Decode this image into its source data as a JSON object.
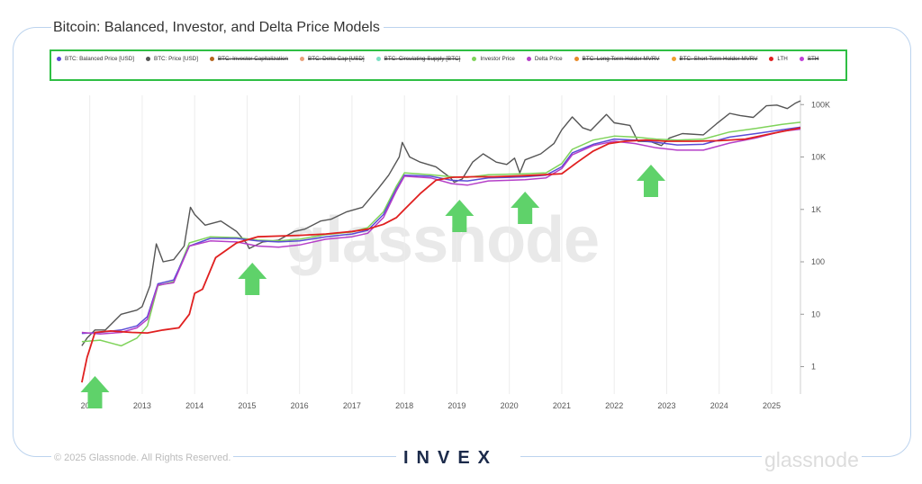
{
  "title": "Bitcoin: Balanced, Investor, and Delta Price Models",
  "legend": [
    {
      "label": "BTC: Balanced Price [USD]",
      "color": "#5b4bd6",
      "enabled": true
    },
    {
      "label": "BTC: Price [USD]",
      "color": "#555555",
      "enabled": true
    },
    {
      "label": "BTC: Investor Capitalization",
      "color": "#b5651d",
      "enabled": false
    },
    {
      "label": "BTC: Delta Cap [USD]",
      "color": "#e8a07a",
      "enabled": false
    },
    {
      "label": "BTC: Circulating Supply [BTC]",
      "color": "#7de0c4",
      "enabled": false
    },
    {
      "label": "Investor Price",
      "color": "#7fd35a",
      "enabled": true
    },
    {
      "label": "Delta Price",
      "color": "#b53fc8",
      "enabled": true
    },
    {
      "label": "BTC: Long Term Holder MVRV",
      "color": "#e88a2a",
      "enabled": false
    },
    {
      "label": "BTC: Short Term Holder MVRV",
      "color": "#f0a030",
      "enabled": false
    },
    {
      "label": "LTH",
      "color": "#e02020",
      "enabled": true
    },
    {
      "label": "STH",
      "color": "#c040d8",
      "enabled": false
    }
  ],
  "watermark": "glassnode",
  "footer": {
    "copyright": "© 2025 Glassnode. All Rights Reserved.",
    "glassnode_logo": "glassnode",
    "invex_logo": "INVEX"
  },
  "arrow_color": "#5fd26a",
  "chart_data": {
    "type": "line",
    "title": "Bitcoin: Balanced, Investor, and Delta Price Models",
    "y_scale": "log",
    "ylim": [
      0.3,
      150000
    ],
    "xlim": [
      2011.8,
      2025.55
    ],
    "x_ticks": [
      "2012",
      "2013",
      "2014",
      "2015",
      "2016",
      "2017",
      "2018",
      "2019",
      "2020",
      "2021",
      "2022",
      "2023",
      "2024",
      "2025"
    ],
    "y_ticks": [
      {
        "value": 1,
        "label": "1"
      },
      {
        "value": 10,
        "label": "10"
      },
      {
        "value": 100,
        "label": "100"
      },
      {
        "value": 1000,
        "label": "1K"
      },
      {
        "value": 10000,
        "label": "10K"
      },
      {
        "value": 100000,
        "label": "100K"
      }
    ],
    "grid": "vertical",
    "legend_position": "top",
    "annotations": {
      "arrows_up_at_year": [
        2012.1,
        2015.1,
        2019.05,
        2020.3,
        2022.7
      ]
    },
    "series": [
      {
        "name": "BTC: Price [USD]",
        "color": "#555555",
        "points": [
          [
            2011.85,
            2.5
          ],
          [
            2011.95,
            3.5
          ],
          [
            2012.1,
            5
          ],
          [
            2012.3,
            5
          ],
          [
            2012.6,
            10
          ],
          [
            2012.9,
            12
          ],
          [
            2013.0,
            14
          ],
          [
            2013.15,
            35
          ],
          [
            2013.27,
            220
          ],
          [
            2013.4,
            100
          ],
          [
            2013.6,
            110
          ],
          [
            2013.8,
            200
          ],
          [
            2013.92,
            1100
          ],
          [
            2014.0,
            800
          ],
          [
            2014.2,
            500
          ],
          [
            2014.5,
            600
          ],
          [
            2014.8,
            380
          ],
          [
            2015.0,
            220
          ],
          [
            2015.04,
            180
          ],
          [
            2015.3,
            240
          ],
          [
            2015.6,
            260
          ],
          [
            2015.9,
            380
          ],
          [
            2016.1,
            420
          ],
          [
            2016.4,
            600
          ],
          [
            2016.6,
            650
          ],
          [
            2016.9,
            900
          ],
          [
            2017.2,
            1100
          ],
          [
            2017.5,
            2500
          ],
          [
            2017.7,
            4500
          ],
          [
            2017.9,
            10000
          ],
          [
            2017.96,
            19000
          ],
          [
            2018.1,
            10000
          ],
          [
            2018.3,
            8000
          ],
          [
            2018.6,
            6500
          ],
          [
            2018.88,
            4000
          ],
          [
            2018.95,
            3300
          ],
          [
            2019.1,
            3800
          ],
          [
            2019.3,
            8000
          ],
          [
            2019.5,
            11500
          ],
          [
            2019.75,
            8000
          ],
          [
            2019.95,
            7200
          ],
          [
            2020.1,
            9500
          ],
          [
            2020.2,
            5000
          ],
          [
            2020.3,
            8800
          ],
          [
            2020.6,
            11500
          ],
          [
            2020.85,
            18000
          ],
          [
            2021.0,
            33000
          ],
          [
            2021.2,
            58000
          ],
          [
            2021.4,
            36000
          ],
          [
            2021.55,
            32000
          ],
          [
            2021.85,
            65000
          ],
          [
            2022.0,
            45000
          ],
          [
            2022.3,
            40000
          ],
          [
            2022.45,
            20000
          ],
          [
            2022.7,
            19500
          ],
          [
            2022.9,
            16500
          ],
          [
            2023.05,
            23000
          ],
          [
            2023.3,
            28000
          ],
          [
            2023.7,
            26500
          ],
          [
            2023.95,
            43000
          ],
          [
            2024.2,
            68000
          ],
          [
            2024.4,
            62000
          ],
          [
            2024.65,
            57000
          ],
          [
            2024.9,
            95000
          ],
          [
            2025.1,
            98000
          ],
          [
            2025.3,
            84000
          ],
          [
            2025.45,
            106000
          ],
          [
            2025.55,
            118000
          ]
        ]
      },
      {
        "name": "BTC: Balanced Price [USD]",
        "color": "#5b4bd6",
        "points": [
          [
            2011.85,
            4.3
          ],
          [
            2012.2,
            4.5
          ],
          [
            2012.6,
            5
          ],
          [
            2012.9,
            6
          ],
          [
            2013.1,
            9
          ],
          [
            2013.3,
            38
          ],
          [
            2013.6,
            45
          ],
          [
            2013.9,
            200
          ],
          [
            2014.3,
            280
          ],
          [
            2014.8,
            280
          ],
          [
            2015.2,
            250
          ],
          [
            2015.6,
            240
          ],
          [
            2016.0,
            250
          ],
          [
            2016.5,
            300
          ],
          [
            2017.0,
            340
          ],
          [
            2017.3,
            400
          ],
          [
            2017.6,
            800
          ],
          [
            2017.85,
            2500
          ],
          [
            2018.0,
            4500
          ],
          [
            2018.5,
            4300
          ],
          [
            2018.9,
            3600
          ],
          [
            2019.2,
            3500
          ],
          [
            2019.6,
            4000
          ],
          [
            2020.0,
            4100
          ],
          [
            2020.3,
            4200
          ],
          [
            2020.7,
            4500
          ],
          [
            2021.0,
            6500
          ],
          [
            2021.2,
            12000
          ],
          [
            2021.6,
            17500
          ],
          [
            2022.0,
            22000
          ],
          [
            2022.4,
            21000
          ],
          [
            2022.8,
            19000
          ],
          [
            2023.2,
            17000
          ],
          [
            2023.7,
            17500
          ],
          [
            2024.2,
            24000
          ],
          [
            2024.7,
            28000
          ],
          [
            2025.2,
            33000
          ],
          [
            2025.55,
            37000
          ]
        ]
      },
      {
        "name": "Investor Price",
        "color": "#7fd35a",
        "points": [
          [
            2011.85,
            3
          ],
          [
            2012.2,
            3.2
          ],
          [
            2012.6,
            2.5
          ],
          [
            2012.9,
            3.5
          ],
          [
            2013.1,
            6
          ],
          [
            2013.3,
            35
          ],
          [
            2013.6,
            42
          ],
          [
            2013.9,
            230
          ],
          [
            2014.3,
            300
          ],
          [
            2014.8,
            290
          ],
          [
            2015.2,
            260
          ],
          [
            2015.6,
            250
          ],
          [
            2016.0,
            270
          ],
          [
            2016.5,
            330
          ],
          [
            2017.0,
            370
          ],
          [
            2017.3,
            450
          ],
          [
            2017.6,
            900
          ],
          [
            2017.85,
            2800
          ],
          [
            2018.0,
            5000
          ],
          [
            2018.5,
            4600
          ],
          [
            2018.9,
            4200
          ],
          [
            2019.2,
            4100
          ],
          [
            2019.6,
            4600
          ],
          [
            2020.0,
            4700
          ],
          [
            2020.3,
            4800
          ],
          [
            2020.7,
            5000
          ],
          [
            2021.0,
            7500
          ],
          [
            2021.2,
            14000
          ],
          [
            2021.6,
            21000
          ],
          [
            2022.0,
            25000
          ],
          [
            2022.4,
            24000
          ],
          [
            2022.8,
            22000
          ],
          [
            2023.2,
            21000
          ],
          [
            2023.7,
            22000
          ],
          [
            2024.2,
            30000
          ],
          [
            2024.7,
            35000
          ],
          [
            2025.2,
            42000
          ],
          [
            2025.55,
            46000
          ]
        ]
      },
      {
        "name": "Delta Price",
        "color": "#b53fc8",
        "points": [
          [
            2011.85,
            4.5
          ],
          [
            2012.2,
            4.2
          ],
          [
            2012.6,
            4.5
          ],
          [
            2012.9,
            5.5
          ],
          [
            2013.1,
            8
          ],
          [
            2013.3,
            36
          ],
          [
            2013.6,
            40
          ],
          [
            2013.9,
            200
          ],
          [
            2014.3,
            250
          ],
          [
            2014.8,
            240
          ],
          [
            2015.2,
            200
          ],
          [
            2015.6,
            190
          ],
          [
            2016.0,
            210
          ],
          [
            2016.5,
            270
          ],
          [
            2017.0,
            300
          ],
          [
            2017.3,
            350
          ],
          [
            2017.6,
            700
          ],
          [
            2017.85,
            2300
          ],
          [
            2018.0,
            4300
          ],
          [
            2018.5,
            4000
          ],
          [
            2018.9,
            3100
          ],
          [
            2019.2,
            2900
          ],
          [
            2019.6,
            3500
          ],
          [
            2020.0,
            3600
          ],
          [
            2020.3,
            3700
          ],
          [
            2020.7,
            4000
          ],
          [
            2021.0,
            6000
          ],
          [
            2021.2,
            11000
          ],
          [
            2021.6,
            16500
          ],
          [
            2022.0,
            20000
          ],
          [
            2022.4,
            18000
          ],
          [
            2022.8,
            15000
          ],
          [
            2023.2,
            13500
          ],
          [
            2023.7,
            13500
          ],
          [
            2024.2,
            18500
          ],
          [
            2024.7,
            23000
          ],
          [
            2025.2,
            31000
          ],
          [
            2025.55,
            34000
          ]
        ]
      },
      {
        "name": "LTH",
        "color": "#e02020",
        "points": [
          [
            2011.85,
            0.5
          ],
          [
            2011.95,
            1.5
          ],
          [
            2012.1,
            4.5
          ],
          [
            2012.4,
            4.8
          ],
          [
            2012.8,
            4.5
          ],
          [
            2013.1,
            4.4
          ],
          [
            2013.4,
            5
          ],
          [
            2013.7,
            5.5
          ],
          [
            2013.9,
            10
          ],
          [
            2014.0,
            25
          ],
          [
            2014.15,
            30
          ],
          [
            2014.4,
            120
          ],
          [
            2014.8,
            230
          ],
          [
            2015.2,
            300
          ],
          [
            2015.6,
            310
          ],
          [
            2016.0,
            320
          ],
          [
            2016.5,
            340
          ],
          [
            2017.0,
            380
          ],
          [
            2017.3,
            420
          ],
          [
            2017.6,
            520
          ],
          [
            2017.85,
            700
          ],
          [
            2018.0,
            1000
          ],
          [
            2018.3,
            2000
          ],
          [
            2018.6,
            3600
          ],
          [
            2018.9,
            4100
          ],
          [
            2019.3,
            4200
          ],
          [
            2019.7,
            4200
          ],
          [
            2020.0,
            4300
          ],
          [
            2020.5,
            4500
          ],
          [
            2021.0,
            4800
          ],
          [
            2021.3,
            8000
          ],
          [
            2021.6,
            13000
          ],
          [
            2021.9,
            18000
          ],
          [
            2022.2,
            20000
          ],
          [
            2022.6,
            21000
          ],
          [
            2023.0,
            20000
          ],
          [
            2023.5,
            20000
          ],
          [
            2024.0,
            20500
          ],
          [
            2024.5,
            22000
          ],
          [
            2025.0,
            28000
          ],
          [
            2025.55,
            36000
          ]
        ]
      }
    ]
  }
}
